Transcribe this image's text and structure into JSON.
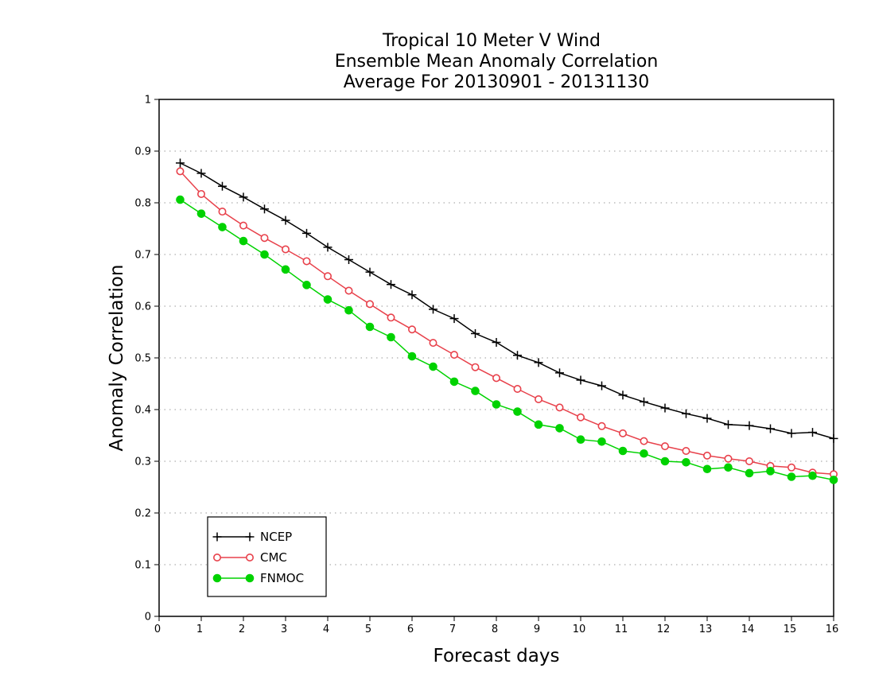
{
  "chart_data": {
    "type": "line",
    "title": [
      "Tropical 10 Meter V Wind",
      "Ensemble Mean Anomaly Correlation",
      "Average For 20130901 - 20131130"
    ],
    "xlabel": "Forecast days",
    "ylabel": "Anomaly Correlation",
    "xlim": [
      0,
      16
    ],
    "ylim": [
      0,
      1
    ],
    "x_ticks": [
      "0",
      "1",
      "2",
      "3",
      "4",
      "5",
      "6",
      "7",
      "8",
      "9",
      "10",
      "11",
      "12",
      "13",
      "14",
      "15",
      "16"
    ],
    "y_ticks": [
      "0",
      "0.1",
      "0.2",
      "0.3",
      "0.4",
      "0.5",
      "0.6",
      "0.7",
      "0.8",
      "0.9",
      "1"
    ],
    "grid": "horizontal dotted",
    "legend_position": "bottom-left",
    "x": [
      0.5,
      1,
      1.5,
      2,
      2.5,
      3,
      3.5,
      4,
      4.5,
      5,
      5.5,
      6,
      6.5,
      7,
      7.5,
      8,
      8.5,
      9,
      9.5,
      10,
      10.5,
      11,
      11.5,
      12,
      12.5,
      13,
      13.5,
      14,
      14.5,
      15,
      15.5,
      16
    ],
    "series": [
      {
        "name": "NCEP",
        "color": "#000000",
        "marker": "plus",
        "values": [
          0.877,
          0.857,
          0.832,
          0.811,
          0.788,
          0.766,
          0.741,
          0.714,
          0.69,
          0.666,
          0.642,
          0.622,
          0.594,
          0.576,
          0.547,
          0.53,
          0.505,
          0.491,
          0.471,
          0.457,
          0.446,
          0.428,
          0.415,
          0.403,
          0.392,
          0.383,
          0.371,
          0.369,
          0.363,
          0.354,
          0.356,
          0.344
        ]
      },
      {
        "name": "CMC",
        "color": "#e8414b",
        "marker": "open-circle",
        "values": [
          0.861,
          0.817,
          0.783,
          0.756,
          0.732,
          0.71,
          0.687,
          0.658,
          0.63,
          0.604,
          0.578,
          0.555,
          0.529,
          0.506,
          0.482,
          0.461,
          0.44,
          0.42,
          0.404,
          0.385,
          0.368,
          0.354,
          0.339,
          0.329,
          0.32,
          0.311,
          0.305,
          0.3,
          0.291,
          0.288,
          0.278,
          0.275
        ]
      },
      {
        "name": "FNMOC",
        "color": "#00d200",
        "marker": "filled-circle",
        "values": [
          0.806,
          0.779,
          0.753,
          0.726,
          0.7,
          0.671,
          0.641,
          0.613,
          0.592,
          0.56,
          0.54,
          0.503,
          0.483,
          0.454,
          0.436,
          0.41,
          0.396,
          0.371,
          0.364,
          0.342,
          0.338,
          0.32,
          0.315,
          0.3,
          0.298,
          0.285,
          0.288,
          0.277,
          0.281,
          0.27,
          0.272,
          0.264
        ]
      }
    ]
  }
}
